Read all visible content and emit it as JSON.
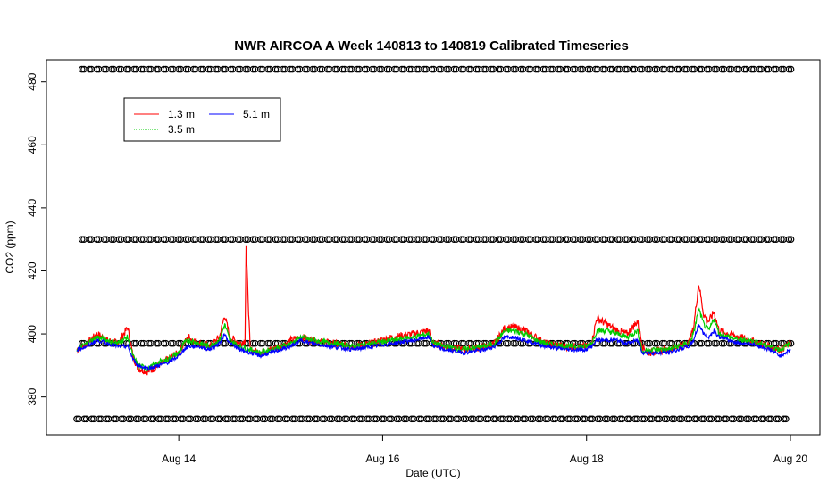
{
  "chart_data": {
    "type": "line",
    "title": "NWR AIRCOA A  Week 140813 to 140819  Calibrated Timeseries",
    "xlabel": "Date (UTC)",
    "ylabel": "CO2 (ppm)",
    "xlim": [
      13.0,
      20.0
    ],
    "ylim": [
      368,
      487
    ],
    "x_ticks": [
      {
        "value": 14,
        "label": "Aug 14"
      },
      {
        "value": 16,
        "label": "Aug 16"
      },
      {
        "value": 18,
        "label": "Aug 18"
      },
      {
        "value": 20,
        "label": "Aug 20"
      }
    ],
    "y_ticks": [
      380,
      400,
      420,
      440,
      460,
      480
    ],
    "legend": {
      "position": "top-left",
      "entries": [
        {
          "label": "1.3 m",
          "color": "#ff0000"
        },
        {
          "label": "5.1 m",
          "color": "#0000ff"
        },
        {
          "label": "3.5 m",
          "color": "#00cc00"
        }
      ]
    },
    "series": [
      {
        "name": "1.3 m",
        "color": "#ff0000",
        "x": [
          13.0,
          13.1,
          13.2,
          13.3,
          13.4,
          13.5,
          13.55,
          13.6,
          13.7,
          13.8,
          13.9,
          14.0,
          14.05,
          14.1,
          14.2,
          14.3,
          14.4,
          14.45,
          14.5,
          14.6,
          14.65,
          14.66,
          14.7,
          14.8,
          14.9,
          15.0,
          15.1,
          15.2,
          15.3,
          15.5,
          15.7,
          15.9,
          16.1,
          16.3,
          16.45,
          16.5,
          16.6,
          16.8,
          17.0,
          17.1,
          17.2,
          17.3,
          17.4,
          17.5,
          17.6,
          17.8,
          18.0,
          18.05,
          18.1,
          18.2,
          18.3,
          18.4,
          18.5,
          18.55,
          18.6,
          18.8,
          19.0,
          19.05,
          19.1,
          19.15,
          19.2,
          19.25,
          19.3,
          19.4,
          19.5,
          19.6,
          19.7,
          19.8,
          19.9,
          20.0
        ],
        "values": [
          395,
          397,
          400,
          398,
          397,
          402,
          393,
          389,
          388,
          390,
          392,
          394,
          397,
          399,
          397,
          396,
          399,
          406,
          399,
          397,
          398,
          428,
          395,
          394,
          395,
          396,
          398,
          399,
          398,
          397,
          396,
          397,
          399,
          400,
          401,
          397,
          396,
          395,
          396,
          397,
          402,
          402,
          401,
          399,
          397,
          396,
          396,
          397,
          405,
          403,
          401,
          400,
          404,
          396,
          394,
          395,
          397,
          402,
          416,
          406,
          404,
          407,
          401,
          400,
          399,
          398,
          397,
          396,
          395,
          397
        ]
      },
      {
        "name": "3.5 m",
        "color": "#00cc00",
        "x": [
          13.0,
          13.1,
          13.2,
          13.3,
          13.4,
          13.5,
          13.55,
          13.6,
          13.7,
          13.8,
          13.9,
          14.0,
          14.05,
          14.1,
          14.2,
          14.3,
          14.4,
          14.45,
          14.5,
          14.6,
          14.7,
          14.8,
          14.9,
          15.0,
          15.1,
          15.2,
          15.3,
          15.5,
          15.7,
          15.9,
          16.1,
          16.3,
          16.45,
          16.5,
          16.6,
          16.8,
          17.0,
          17.1,
          17.2,
          17.3,
          17.4,
          17.5,
          17.6,
          17.8,
          18.0,
          18.05,
          18.1,
          18.2,
          18.3,
          18.4,
          18.5,
          18.55,
          18.6,
          18.8,
          19.0,
          19.05,
          19.1,
          19.15,
          19.2,
          19.25,
          19.3,
          19.4,
          19.5,
          19.6,
          19.7,
          19.8,
          19.9,
          20.0
        ],
        "values": [
          395,
          397,
          399,
          398,
          397,
          399,
          393,
          390,
          389,
          391,
          392,
          394,
          397,
          398,
          397,
          396,
          398,
          403,
          398,
          396,
          395,
          394,
          395,
          396,
          397,
          399,
          398,
          397,
          396,
          397,
          398,
          399,
          400,
          397,
          396,
          395,
          396,
          397,
          401,
          401,
          400,
          398,
          397,
          396,
          396,
          397,
          401,
          401,
          400,
          399,
          401,
          394,
          395,
          395,
          397,
          400,
          408,
          403,
          401,
          405,
          400,
          399,
          398,
          398,
          397,
          396,
          395,
          397
        ]
      },
      {
        "name": "5.1 m",
        "color": "#0000ff",
        "x": [
          13.0,
          13.1,
          13.2,
          13.3,
          13.4,
          13.5,
          13.55,
          13.6,
          13.7,
          13.8,
          13.9,
          14.0,
          14.05,
          14.1,
          14.2,
          14.3,
          14.4,
          14.45,
          14.5,
          14.6,
          14.7,
          14.8,
          14.9,
          15.0,
          15.1,
          15.2,
          15.3,
          15.5,
          15.7,
          15.9,
          16.1,
          16.3,
          16.45,
          16.5,
          16.6,
          16.8,
          17.0,
          17.1,
          17.2,
          17.3,
          17.4,
          17.5,
          17.6,
          17.8,
          18.0,
          18.05,
          18.1,
          18.2,
          18.3,
          18.4,
          18.5,
          18.55,
          18.6,
          18.8,
          19.0,
          19.05,
          19.1,
          19.15,
          19.2,
          19.25,
          19.3,
          19.4,
          19.5,
          19.6,
          19.7,
          19.8,
          19.9,
          20.0
        ],
        "values": [
          395,
          396,
          398,
          397,
          396,
          396,
          392,
          390,
          389,
          390,
          391,
          393,
          395,
          396,
          396,
          395,
          397,
          400,
          397,
          395,
          394,
          393,
          394,
          395,
          396,
          398,
          397,
          396,
          395,
          396,
          397,
          398,
          399,
          396,
          395,
          394,
          395,
          396,
          399,
          399,
          398,
          397,
          396,
          395,
          395,
          396,
          398,
          398,
          398,
          397,
          398,
          394,
          394,
          394,
          396,
          398,
          403,
          400,
          399,
          401,
          399,
          398,
          397,
          397,
          396,
          395,
          393,
          395
        ]
      },
      {
        "name": "",
        "type": "scatter",
        "color": "#000000",
        "x": [
          13.05,
          13.82,
          14.6,
          15.4,
          16.2,
          17.0,
          17.8,
          18.6,
          19.4,
          20.0
        ],
        "values": [
          484,
          484,
          484,
          484,
          484,
          484,
          484,
          484,
          484,
          484
        ],
        "repeated_across_axis": true
      },
      {
        "name": "",
        "type": "scatter",
        "color": "#000000",
        "x": [
          13.05,
          20.0
        ],
        "values": [
          430,
          430
        ],
        "repeated_across_axis": true
      },
      {
        "name": "",
        "type": "scatter",
        "color": "#000000",
        "x": [
          13.05,
          20.0
        ],
        "values": [
          397,
          397
        ],
        "repeated_across_axis": true
      },
      {
        "name": "",
        "type": "scatter",
        "color": "#000000",
        "x": [
          13.0,
          20.0
        ],
        "values": [
          373,
          373
        ],
        "repeated_across_axis": true
      }
    ]
  }
}
